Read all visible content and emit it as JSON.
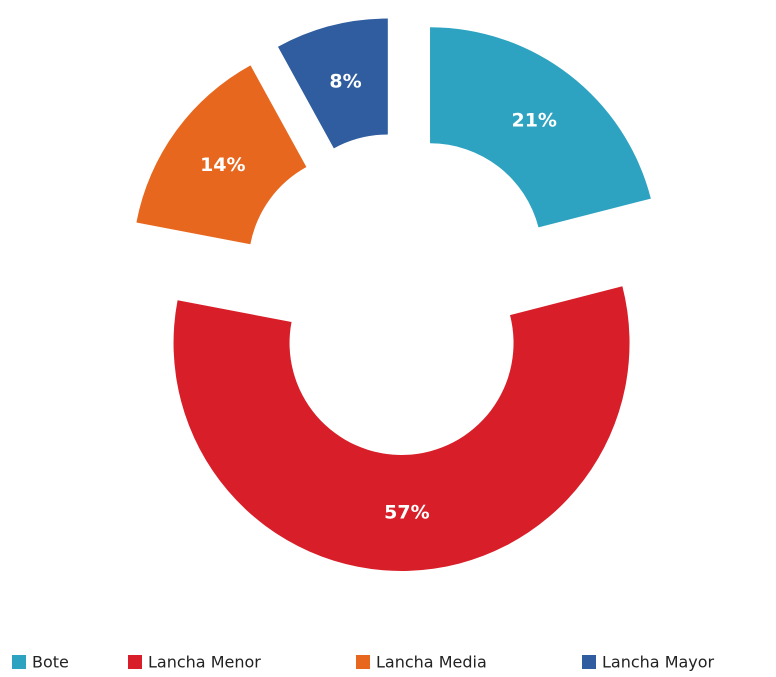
{
  "chart_data": {
    "type": "donut",
    "categories": [
      "Bote",
      "Lancha Menor",
      "Lancha Media",
      "Lancha Mayor"
    ],
    "values": [
      21,
      57,
      14,
      8
    ],
    "value_labels": [
      "21%",
      "57%",
      "14%",
      "8%"
    ],
    "colors": [
      "#2ea3c1",
      "#d81e28",
      "#e8671e",
      "#2f5d9f"
    ],
    "legend": "bottom"
  }
}
